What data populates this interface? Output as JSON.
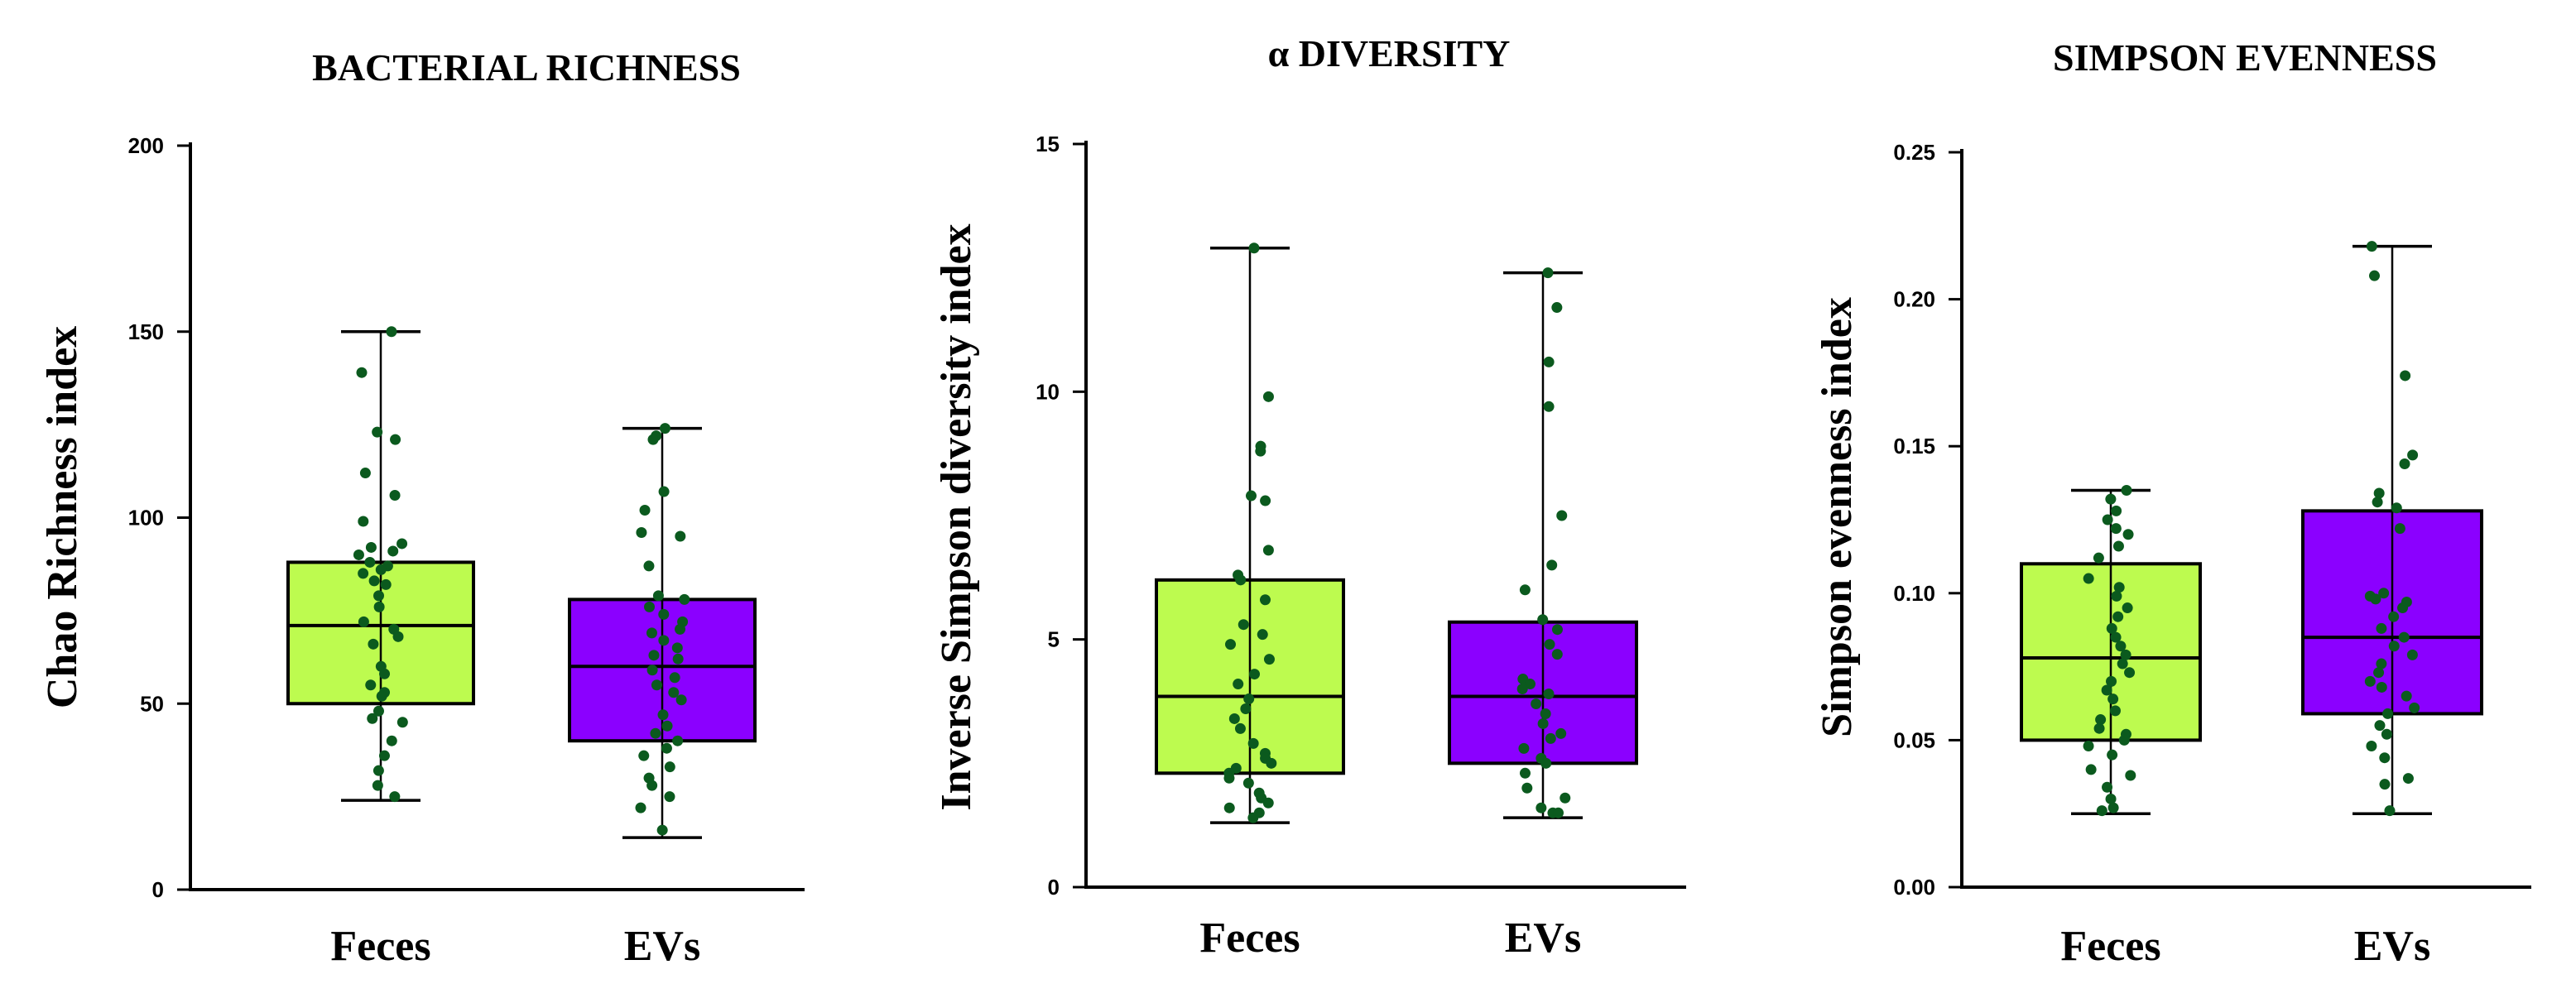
{
  "colors": {
    "feces": "#bdfb4f",
    "evs": "#8b00ff",
    "dot": "#0b5a1e"
  },
  "chart_data": [
    {
      "type": "box",
      "title": "BACTERIAL RICHNESS",
      "ylabel": "Chao Richness index",
      "xlabel": "",
      "ylim": [
        0,
        200
      ],
      "yticks": [
        0,
        50,
        100,
        150,
        200
      ],
      "ytick_labels": [
        "0",
        "50",
        "100",
        "150",
        "200"
      ],
      "categories": [
        "Feces",
        "EVs"
      ],
      "series": [
        {
          "name": "Feces",
          "min": 24,
          "q1": 50,
          "median": 71,
          "q3": 88,
          "max": 150,
          "points": [
            150,
            139,
            123,
            121,
            112,
            106,
            99,
            93,
            92,
            91,
            90,
            88,
            87,
            86,
            85,
            83,
            82,
            79,
            76,
            72,
            70,
            68,
            66,
            60,
            58,
            55,
            53,
            52,
            48,
            46,
            45,
            40,
            36,
            32,
            28,
            25
          ]
        },
        {
          "name": "EVs",
          "min": 14,
          "q1": 40,
          "median": 60,
          "q3": 78,
          "max": 124,
          "points": [
            124,
            122,
            121,
            107,
            102,
            96,
            95,
            87,
            79,
            78,
            76,
            74,
            72,
            70,
            69,
            67,
            65,
            63,
            62,
            59,
            57,
            55,
            53,
            51,
            47,
            44,
            42,
            40,
            38,
            36,
            33,
            30,
            28,
            25,
            22,
            16
          ]
        }
      ]
    },
    {
      "type": "box",
      "title": "α DIVERSITY",
      "ylabel": "Inverse Simpson diversity index",
      "xlabel": "",
      "ylim": [
        0,
        15
      ],
      "yticks": [
        0,
        5,
        10,
        15
      ],
      "ytick_labels": [
        "0",
        "5",
        "10",
        "15"
      ],
      "categories": [
        "Feces",
        "EVs"
      ],
      "series": [
        {
          "name": "Feces",
          "min": 1.3,
          "q1": 2.3,
          "median": 3.85,
          "q3": 6.2,
          "max": 12.9,
          "points": [
            12.9,
            9.9,
            8.9,
            8.8,
            7.9,
            7.8,
            6.8,
            6.3,
            6.2,
            5.8,
            5.3,
            5.1,
            4.9,
            4.6,
            4.3,
            4.1,
            3.8,
            3.6,
            3.4,
            3.2,
            2.9,
            2.7,
            2.6,
            2.5,
            2.4,
            2.3,
            2.2,
            2.1,
            1.9,
            1.8,
            1.7,
            1.6,
            1.5,
            1.4
          ]
        },
        {
          "name": "EVs",
          "min": 1.4,
          "q1": 2.5,
          "median": 3.85,
          "q3": 5.35,
          "max": 12.4,
          "points": [
            12.4,
            11.7,
            10.6,
            9.7,
            7.5,
            6.5,
            6.0,
            5.4,
            5.2,
            4.9,
            4.7,
            4.2,
            4.1,
            4.0,
            3.9,
            3.7,
            3.5,
            3.3,
            3.1,
            3.0,
            2.8,
            2.6,
            2.5,
            2.3,
            2.0,
            1.8,
            1.6,
            1.5,
            1.5
          ]
        }
      ]
    },
    {
      "type": "box",
      "title": "SIMPSON EVENNESS",
      "ylabel": "Simpson evenness index",
      "xlabel": "",
      "ylim": [
        0.0,
        0.25
      ],
      "yticks": [
        0.0,
        0.05,
        0.1,
        0.15,
        0.2,
        0.25
      ],
      "ytick_labels": [
        "0.00",
        "0.05",
        "0.10",
        "0.15",
        "0.20",
        "0.25"
      ],
      "categories": [
        "Feces",
        "EVs"
      ],
      "series": [
        {
          "name": "Feces",
          "min": 0.025,
          "q1": 0.05,
          "median": 0.078,
          "q3": 0.11,
          "max": 0.135,
          "points": [
            0.135,
            0.132,
            0.128,
            0.125,
            0.122,
            0.12,
            0.116,
            0.112,
            0.105,
            0.102,
            0.099,
            0.095,
            0.092,
            0.088,
            0.085,
            0.082,
            0.079,
            0.076,
            0.073,
            0.07,
            0.067,
            0.064,
            0.06,
            0.057,
            0.054,
            0.052,
            0.05,
            0.048,
            0.045,
            0.04,
            0.038,
            0.034,
            0.03,
            0.027,
            0.026
          ]
        },
        {
          "name": "EVs",
          "min": 0.025,
          "q1": 0.059,
          "median": 0.085,
          "q3": 0.128,
          "max": 0.218,
          "points": [
            0.218,
            0.208,
            0.174,
            0.147,
            0.144,
            0.134,
            0.131,
            0.129,
            0.122,
            0.1,
            0.099,
            0.098,
            0.097,
            0.095,
            0.092,
            0.088,
            0.085,
            0.082,
            0.079,
            0.076,
            0.073,
            0.07,
            0.068,
            0.065,
            0.061,
            0.059,
            0.055,
            0.052,
            0.048,
            0.044,
            0.037,
            0.035,
            0.026
          ]
        }
      ]
    }
  ]
}
